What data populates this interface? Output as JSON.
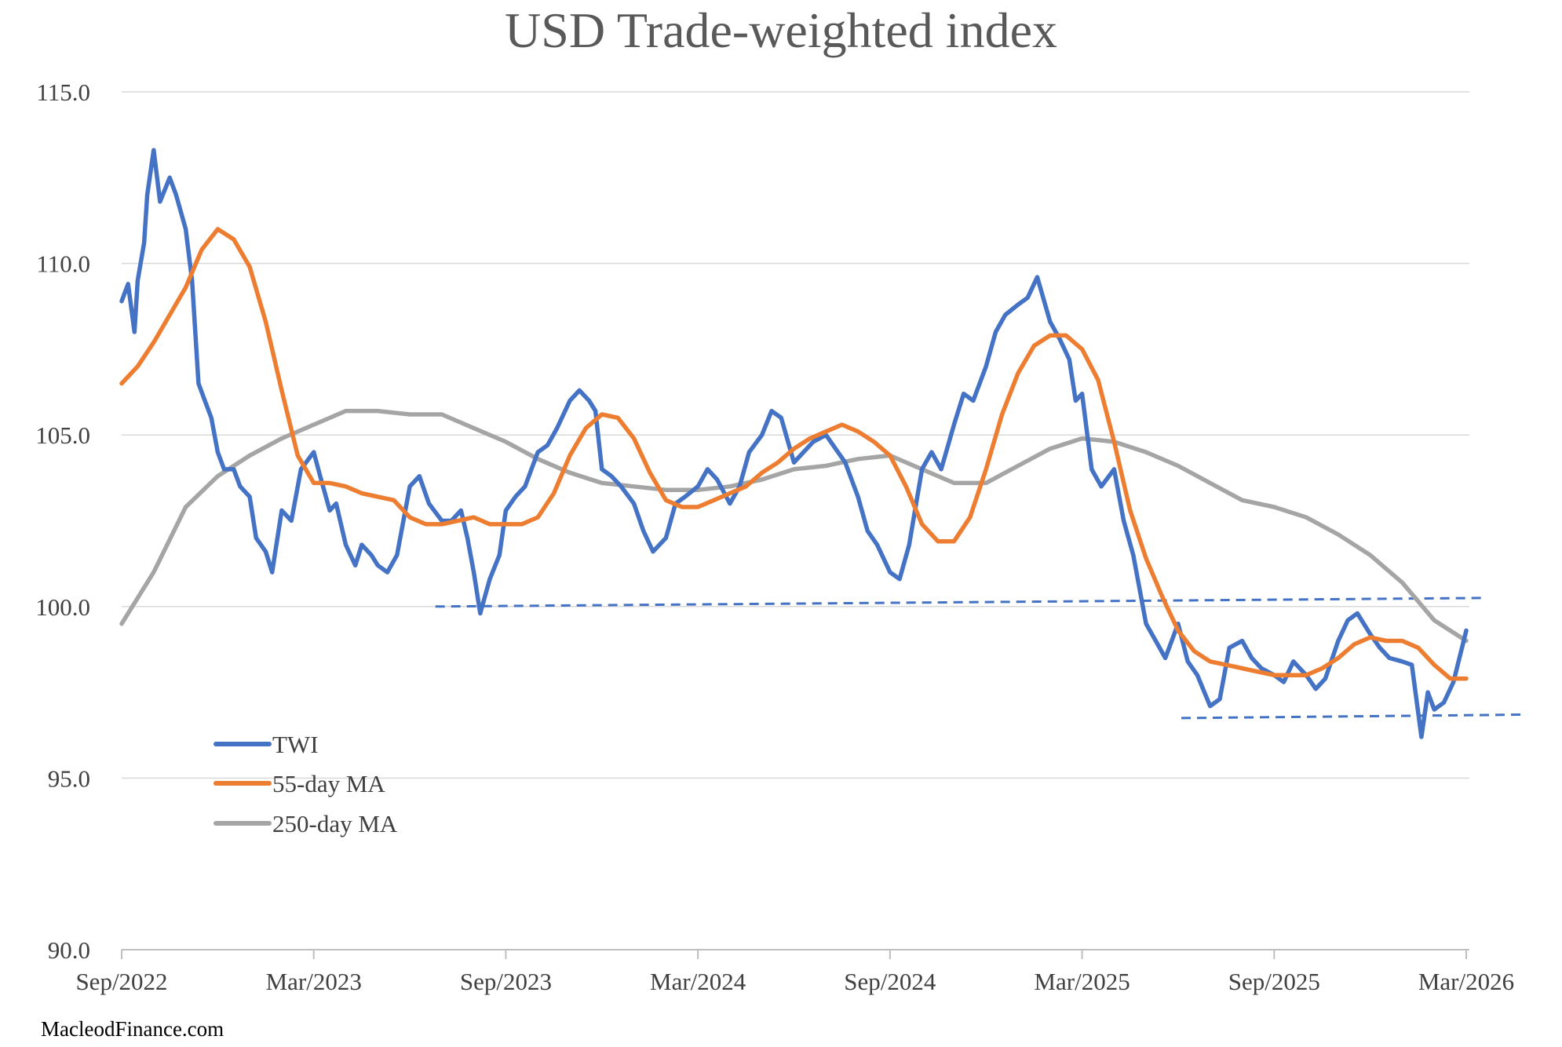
{
  "source": "MacleodFinance.com",
  "colors": {
    "twi": "#4472C4",
    "ma55": "#ED7D31",
    "ma250": "#A5A5A5",
    "grid": "#D9D9D9",
    "text": "#404040",
    "title": "#595959"
  },
  "chart_data": {
    "type": "line",
    "title": "USD Trade-weighted index",
    "xlabel": "",
    "ylabel": "",
    "ylim": [
      90,
      115
    ],
    "y_ticks": [
      "90.0",
      "95.0",
      "100.0",
      "105.0",
      "110.0",
      "115.0"
    ],
    "xlim": [
      0,
      42
    ],
    "x_ticks": [
      {
        "label": "Sep/2022",
        "pos": 0
      },
      {
        "label": "Mar/2023",
        "pos": 6
      },
      {
        "label": "Sep/2023",
        "pos": 12
      },
      {
        "label": "Mar/2024",
        "pos": 18
      },
      {
        "label": "Sep/2024",
        "pos": 24
      },
      {
        "label": "Mar/2025",
        "pos": 30
      },
      {
        "label": "Sep/2025",
        "pos": 36
      },
      {
        "label": "Mar/2026",
        "pos": 42
      }
    ],
    "legend": {
      "placement": "lower-left",
      "entries": [
        "TWI",
        "55-day MA",
        "250-day MA"
      ]
    },
    "series": [
      {
        "name": "TWI",
        "x": [
          0,
          0.2,
          0.4,
          0.5,
          0.7,
          0.8,
          1.0,
          1.2,
          1.5,
          1.7,
          2.0,
          2.2,
          2.4,
          2.6,
          2.8,
          3.0,
          3.2,
          3.5,
          3.7,
          4.0,
          4.2,
          4.5,
          4.7,
          5.0,
          5.3,
          5.6,
          6.0,
          6.2,
          6.5,
          6.7,
          7.0,
          7.3,
          7.5,
          7.8,
          8.0,
          8.3,
          8.6,
          9.0,
          9.3,
          9.6,
          10.0,
          10.3,
          10.6,
          10.8,
          11.0,
          11.2,
          11.5,
          11.8,
          12.0,
          12.3,
          12.6,
          13.0,
          13.3,
          13.6,
          14.0,
          14.3,
          14.6,
          14.8,
          15.0,
          15.3,
          15.6,
          16.0,
          16.3,
          16.6,
          17.0,
          17.3,
          17.6,
          18.0,
          18.3,
          18.6,
          19.0,
          19.3,
          19.6,
          20.0,
          20.3,
          20.6,
          21.0,
          21.3,
          21.6,
          22.0,
          22.3,
          22.6,
          23.0,
          23.3,
          23.6,
          24.0,
          24.3,
          24.6,
          25.0,
          25.3,
          25.6,
          26.0,
          26.3,
          26.6,
          27.0,
          27.3,
          27.6,
          28.0,
          28.3,
          28.6,
          29.0,
          29.3,
          29.6,
          29.8,
          30.0,
          30.3,
          30.6,
          31.0,
          31.3,
          31.6,
          32.0,
          32.3,
          32.6,
          33.0,
          33.3,
          33.6,
          34.0,
          34.3,
          34.6,
          35.0,
          35.3,
          35.6,
          36.0,
          36.3,
          36.6,
          37.0,
          37.3,
          37.6,
          38.0,
          38.3,
          38.6,
          39.0,
          39.3,
          39.6,
          40.0,
          40.3,
          40.6,
          40.8,
          41.0,
          41.3,
          41.6,
          42.0
        ],
        "values": [
          108.9,
          109.4,
          108.0,
          109.5,
          110.6,
          112.0,
          113.3,
          111.8,
          112.5,
          112.0,
          111.0,
          109.5,
          106.5,
          106.0,
          105.5,
          104.5,
          104.0,
          104.0,
          103.5,
          103.2,
          102.0,
          101.6,
          101.0,
          102.8,
          102.5,
          104.0,
          104.5,
          103.8,
          102.8,
          103.0,
          101.8,
          101.2,
          101.8,
          101.5,
          101.2,
          101.0,
          101.5,
          103.5,
          103.8,
          103.0,
          102.5,
          102.5,
          102.8,
          102.0,
          101.0,
          99.8,
          100.8,
          101.5,
          102.8,
          103.2,
          103.5,
          104.5,
          104.7,
          105.2,
          106.0,
          106.3,
          106.0,
          105.7,
          104.0,
          103.8,
          103.5,
          103.0,
          102.2,
          101.6,
          102.0,
          103.0,
          103.2,
          103.5,
          104.0,
          103.7,
          103.0,
          103.5,
          104.5,
          105.0,
          105.7,
          105.5,
          104.2,
          104.5,
          104.8,
          105.0,
          104.6,
          104.2,
          103.2,
          102.2,
          101.8,
          101.0,
          100.8,
          101.8,
          104.0,
          104.5,
          104.0,
          105.3,
          106.2,
          106.0,
          107.0,
          108.0,
          108.5,
          108.8,
          109.0,
          109.6,
          108.3,
          107.8,
          107.2,
          106.0,
          106.2,
          104.0,
          103.5,
          104.0,
          102.5,
          101.5,
          99.5,
          99.0,
          98.5,
          99.5,
          98.4,
          98.0,
          97.1,
          97.3,
          98.8,
          99.0,
          98.5,
          98.2,
          98.0,
          97.8,
          98.4,
          98.0,
          97.6,
          97.9,
          99.0,
          99.6,
          99.8,
          99.2,
          98.8,
          98.5,
          98.4,
          98.3,
          96.2,
          97.5,
          97.0,
          97.2,
          97.8,
          99.3
        ]
      },
      {
        "name": "55-day MA",
        "x": [
          0,
          0.5,
          1.0,
          1.5,
          2.0,
          2.5,
          3.0,
          3.5,
          4.0,
          4.5,
          5.0,
          5.5,
          6.0,
          6.5,
          7.0,
          7.5,
          8.0,
          8.5,
          9.0,
          9.5,
          10.0,
          10.5,
          11.0,
          11.5,
          12.0,
          12.5,
          13.0,
          13.5,
          14.0,
          14.5,
          15.0,
          15.5,
          16.0,
          16.5,
          17.0,
          17.5,
          18.0,
          18.5,
          19.0,
          19.5,
          20.0,
          20.5,
          21.0,
          21.5,
          22.0,
          22.5,
          23.0,
          23.5,
          24.0,
          24.5,
          25.0,
          25.5,
          26.0,
          26.5,
          27.0,
          27.5,
          28.0,
          28.5,
          29.0,
          29.5,
          30.0,
          30.5,
          31.0,
          31.5,
          32.0,
          32.5,
          33.0,
          33.5,
          34.0,
          34.5,
          35.0,
          35.5,
          36.0,
          36.5,
          37.0,
          37.5,
          38.0,
          38.5,
          39.0,
          39.5,
          40.0,
          40.5,
          41.0,
          41.5,
          42.0
        ],
        "values": [
          106.5,
          107.0,
          107.7,
          108.5,
          109.3,
          110.4,
          111.0,
          110.7,
          109.9,
          108.3,
          106.3,
          104.4,
          103.6,
          103.6,
          103.5,
          103.3,
          103.2,
          103.1,
          102.6,
          102.4,
          102.4,
          102.5,
          102.6,
          102.4,
          102.4,
          102.4,
          102.6,
          103.3,
          104.4,
          105.2,
          105.6,
          105.5,
          104.9,
          103.9,
          103.1,
          102.9,
          102.9,
          103.1,
          103.3,
          103.5,
          103.9,
          104.2,
          104.6,
          104.9,
          105.1,
          105.3,
          105.1,
          104.8,
          104.4,
          103.5,
          102.4,
          101.9,
          101.9,
          102.6,
          104.0,
          105.6,
          106.8,
          107.6,
          107.9,
          107.9,
          107.5,
          106.6,
          104.8,
          102.8,
          101.4,
          100.3,
          99.3,
          98.7,
          98.4,
          98.3,
          98.2,
          98.1,
          98.0,
          98.0,
          98.0,
          98.2,
          98.5,
          98.9,
          99.1,
          99.0,
          99.0,
          98.8,
          98.3,
          97.9,
          97.9
        ]
      },
      {
        "name": "250-day MA",
        "x": [
          0,
          1,
          2,
          3,
          4,
          5,
          6,
          7,
          8,
          9,
          10,
          11,
          12,
          13,
          14,
          15,
          16,
          17,
          18,
          19,
          20,
          21,
          22,
          23,
          24,
          25,
          26,
          27,
          28,
          29,
          30,
          31,
          32,
          33,
          34,
          35,
          36,
          37,
          38,
          39,
          40,
          41,
          42
        ],
        "values": [
          99.5,
          101.0,
          102.9,
          103.8,
          104.4,
          104.9,
          105.3,
          105.7,
          105.7,
          105.6,
          105.6,
          105.2,
          104.8,
          104.3,
          103.9,
          103.6,
          103.5,
          103.4,
          103.4,
          103.5,
          103.7,
          104.0,
          104.1,
          104.3,
          104.4,
          104.0,
          103.6,
          103.6,
          104.1,
          104.6,
          104.9,
          104.8,
          104.5,
          104.1,
          103.6,
          103.1,
          102.9,
          102.6,
          102.1,
          101.5,
          100.7,
          99.6,
          99.0
        ]
      }
    ],
    "support_lines": [
      {
        "name": "upper-trendline",
        "x": [
          9.8,
          42.6
        ],
        "values": [
          100.0,
          100.25
        ]
      },
      {
        "name": "lower-trendline",
        "x": [
          33.1,
          43.8
        ],
        "values": [
          96.75,
          96.85
        ]
      }
    ]
  }
}
